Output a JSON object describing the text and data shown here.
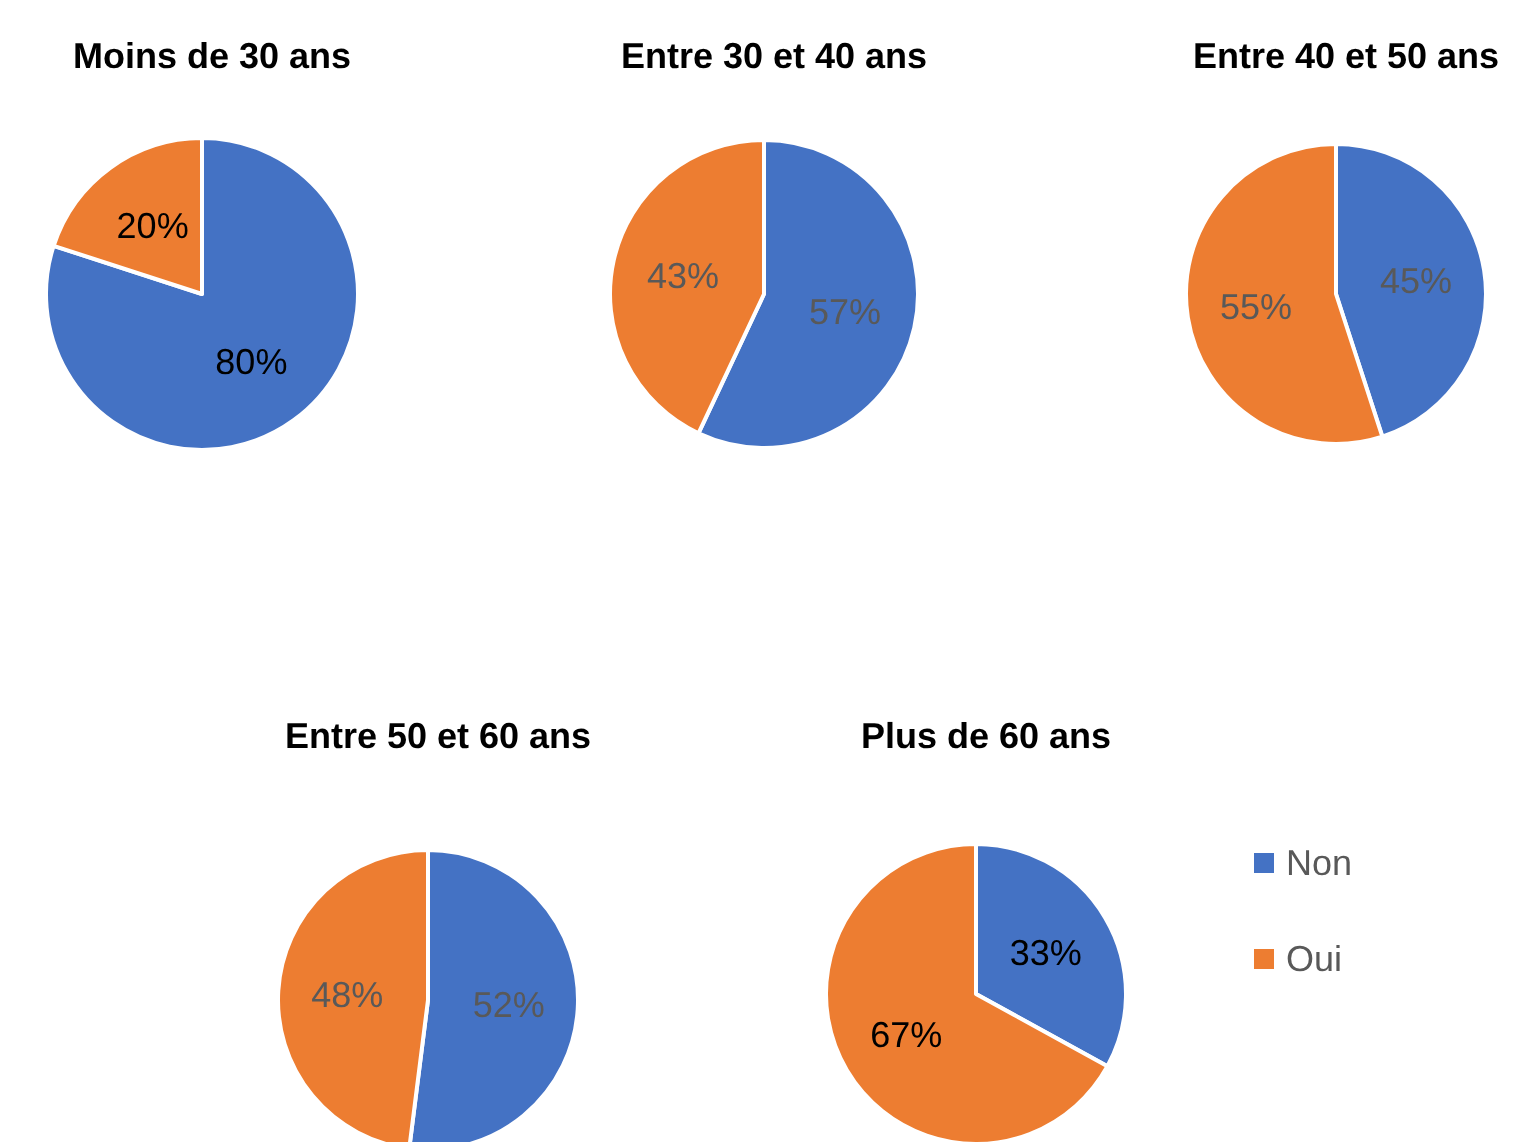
{
  "chart_data": [
    {
      "type": "pie",
      "title": "Moins de 30 ans",
      "categories": [
        null,
        null
      ],
      "values": [
        80,
        20
      ],
      "colors": [
        "#4472c4",
        "#ed7d31"
      ],
      "value_labels": [
        "80%",
        "20%"
      ]
    },
    {
      "type": "pie",
      "title": "Entre 30 et 40 ans",
      "categories": [
        null,
        null
      ],
      "values": [
        57,
        43
      ],
      "colors": [
        "#4472c4",
        "#ed7d31"
      ],
      "value_labels": [
        "57%",
        "43%"
      ]
    },
    {
      "type": "pie",
      "title": "Entre 40 et 50 ans",
      "categories": [
        null,
        null
      ],
      "values": [
        45,
        55
      ],
      "colors": [
        "#4472c4",
        "#ed7d31"
      ],
      "value_labels": [
        "45%",
        "55%"
      ]
    },
    {
      "type": "pie",
      "title": "Entre 50 et 60 ans",
      "categories": [
        null,
        null
      ],
      "values": [
        52,
        48
      ],
      "colors": [
        "#4472c4",
        "#ed7d31"
      ],
      "value_labels": [
        "52%",
        "48%"
      ]
    },
    {
      "type": "pie",
      "title": "Plus de 60 ans",
      "categories": [
        "Non",
        "Oui"
      ],
      "values": [
        33,
        67
      ],
      "colors": [
        "#4472c4",
        "#ed7d31"
      ],
      "value_labels": [
        "33%",
        "67%"
      ],
      "legend": "right"
    }
  ]
}
